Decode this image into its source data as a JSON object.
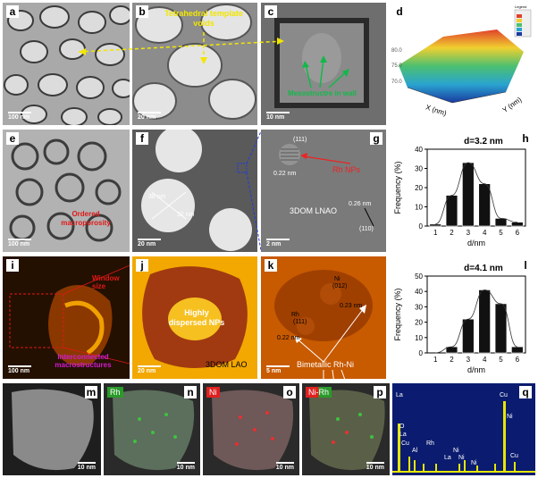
{
  "panels": {
    "a": {
      "letter": "a",
      "scale": "100 nm"
    },
    "b": {
      "letter": "b",
      "scale": "20 nm"
    },
    "c": {
      "letter": "c",
      "scale": "10 nm"
    },
    "d": {
      "letter": "d",
      "legend": "Legend",
      "axis_x": "X (nm)",
      "axis_y": "Y (nm)"
    },
    "e": {
      "letter": "e",
      "scale": "100 nm"
    },
    "f": {
      "letter": "f",
      "scale": "20 nm",
      "dim1": "38 nm",
      "dim2": "32 nm"
    },
    "g": {
      "letter": "g",
      "scale": "2 nm"
    },
    "h": {
      "letter": "h"
    },
    "i": {
      "letter": "i",
      "scale": "100 nm"
    },
    "j": {
      "letter": "j",
      "scale": "20 nm"
    },
    "k": {
      "letter": "k",
      "scale": "5 nm"
    },
    "l": {
      "letter": "l"
    },
    "m": {
      "letter": "m",
      "scale": "10 nm"
    },
    "n": {
      "letter": "n",
      "scale": "10 nm",
      "element": "Rh"
    },
    "o": {
      "letter": "o",
      "scale": "10 nm",
      "element": "Ni"
    },
    "p": {
      "letter": "p",
      "scale": "10 nm",
      "element": "Ni-Rh"
    },
    "q": {
      "letter": "q"
    }
  },
  "annotations": {
    "tetrahedral": "Tetrahedral template voids",
    "mesostructure": "Mesostructre in wall",
    "ordered": "Ordered macroporosity",
    "g_111": "(111)",
    "g_022": "0.22 nm",
    "g_rh": "Rh NPs",
    "g_026": "0.26 nm",
    "g_110": "(110)",
    "g_lnao": "3DOM LNAO",
    "i_window": "Window size",
    "i_inter": "Interconnected macrostructures",
    "j_dispersed": "Highly dispersed NPs",
    "j_lao": "3DOM LAO",
    "k_012": "(012)",
    "k_ni": "Ni",
    "k_023": "0.23 nm",
    "k_111": "(111)",
    "k_rh": "Rh",
    "k_022": "0.22 nm",
    "k_bimetal": "Bimetallic Rh-Ni"
  },
  "eds_labels": {
    "la1": "La",
    "o": "O",
    "la2": "La",
    "cu1": "Cu",
    "al": "Al",
    "rh": "Rh",
    "ni1": "Ni",
    "la3": "La",
    "ni2": "Ni",
    "ni3": "Ni",
    "cu2": "Cu",
    "ni4": "Ni",
    "cu3": "Cu"
  },
  "chart_data": [
    {
      "type": "bar",
      "title": "d=3.2 nm",
      "xlabel": "d/nm",
      "ylabel": "Frequency (%)",
      "categories": [
        "1",
        "2",
        "3",
        "4",
        "5",
        "6"
      ],
      "values": [
        1,
        16,
        33,
        22,
        4,
        2
      ],
      "ylim": [
        0,
        40
      ],
      "yticks": [
        "0",
        "10",
        "20",
        "30",
        "40"
      ]
    },
    {
      "type": "bar",
      "title": "d=4.1 nm",
      "xlabel": "d/nm",
      "ylabel": "Frequency (%)",
      "categories": [
        "1",
        "2",
        "3",
        "4",
        "5",
        "6"
      ],
      "values": [
        0,
        4,
        22,
        41,
        32,
        4
      ],
      "ylim": [
        0,
        50
      ],
      "yticks": [
        "0",
        "10",
        "20",
        "30",
        "40",
        "50"
      ]
    }
  ]
}
